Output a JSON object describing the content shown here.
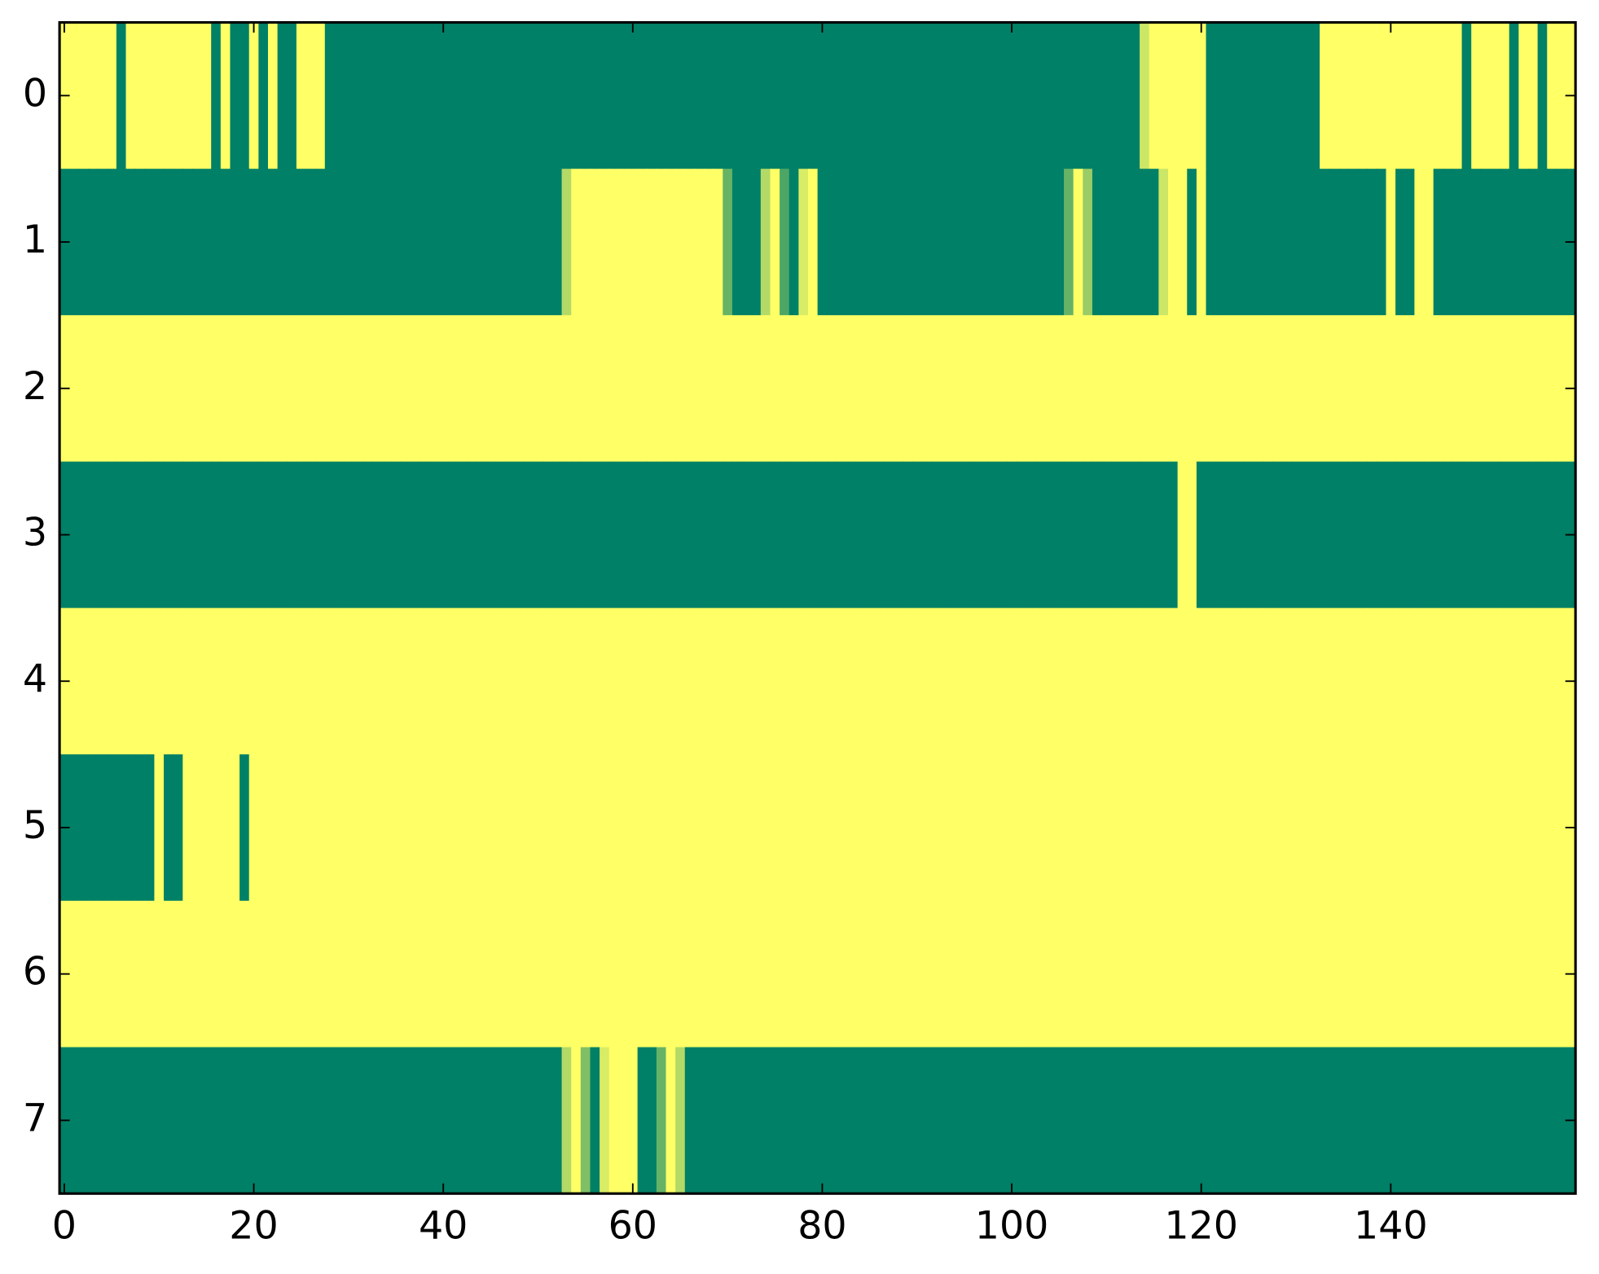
{
  "chart_data": {
    "type": "heatmap",
    "colormap": "summer",
    "xlim": [
      -0.5,
      159.5
    ],
    "ylim": [
      7.5,
      -0.5
    ],
    "xticks": [
      0,
      20,
      40,
      60,
      80,
      100,
      120,
      140
    ],
    "yticks": [
      0,
      1,
      2,
      3,
      4,
      5,
      6,
      7
    ],
    "z": [
      [
        1,
        1,
        1,
        1,
        1,
        1,
        0,
        1,
        1,
        1,
        1,
        1,
        1,
        1,
        1,
        1,
        0,
        1,
        0,
        0,
        1,
        0,
        1,
        0,
        0,
        1,
        1,
        1,
        0,
        0,
        0,
        0,
        0,
        0,
        0,
        0,
        0,
        0,
        0,
        0,
        0,
        0,
        0,
        0,
        0,
        0,
        0,
        0,
        0,
        0,
        0,
        0,
        0,
        0,
        0,
        0,
        0,
        0,
        0,
        0,
        0,
        0,
        0,
        0,
        0,
        0,
        0,
        0,
        0,
        0,
        0,
        0,
        0,
        0,
        0,
        0,
        0,
        0,
        0,
        0,
        0,
        0,
        0,
        0,
        0,
        0,
        0,
        0,
        0,
        0,
        0,
        0,
        0,
        0,
        0,
        0,
        0,
        0,
        0,
        0,
        0,
        0,
        0,
        0,
        0,
        0,
        0,
        0,
        0,
        0,
        0,
        0,
        0,
        0,
        0.8,
        1,
        1,
        1,
        1,
        1,
        1,
        0,
        0,
        0,
        0,
        0,
        0,
        0,
        0,
        0,
        0,
        0,
        0,
        1,
        1,
        1,
        1,
        1,
        1,
        1,
        1,
        1,
        1,
        1,
        1,
        1,
        1,
        1,
        0,
        1,
        1,
        1,
        1,
        0,
        1,
        1,
        0,
        1,
        1,
        1
      ],
      [
        0,
        0,
        0,
        0,
        0,
        0,
        0,
        0,
        0,
        0,
        0,
        0,
        0,
        0,
        0,
        0,
        0,
        0,
        0,
        0,
        0,
        0,
        0,
        0,
        0,
        0,
        0,
        0,
        0,
        0,
        0,
        0,
        0,
        0,
        0,
        0,
        0,
        0,
        0,
        0,
        0,
        0,
        0,
        0,
        0,
        0,
        0,
        0,
        0,
        0,
        0,
        0,
        0,
        0.7,
        1,
        1,
        1,
        1,
        1,
        1,
        1,
        1,
        1,
        1,
        1,
        1,
        1,
        1,
        1,
        1,
        0.4,
        0,
        0,
        0,
        0.7,
        1,
        0.3,
        0,
        0.85,
        1,
        0,
        0,
        0,
        0,
        0,
        0,
        0,
        0,
        0,
        0,
        0,
        0,
        0,
        0,
        0,
        0,
        0,
        0,
        0,
        0,
        0,
        0,
        0,
        0,
        0,
        0,
        0.4,
        1,
        0.6,
        0,
        0,
        0,
        0,
        0,
        0,
        0,
        0.8,
        1,
        1,
        0,
        1,
        0,
        0,
        0,
        0,
        0,
        0,
        0,
        0,
        0,
        0,
        0,
        0,
        0,
        0,
        0,
        0,
        0,
        0,
        0,
        1,
        0,
        0,
        1,
        1,
        0,
        0,
        0,
        0,
        0,
        0,
        0,
        0,
        0,
        0,
        0,
        0,
        0,
        0,
        0
      ],
      [
        1,
        1,
        1,
        1,
        1,
        1,
        1,
        1,
        1,
        1,
        1,
        1,
        1,
        1,
        1,
        1,
        1,
        1,
        1,
        1,
        1,
        1,
        1,
        1,
        1,
        1,
        1,
        1,
        1,
        1,
        1,
        1,
        1,
        1,
        1,
        1,
        1,
        1,
        1,
        1,
        1,
        1,
        1,
        1,
        1,
        1,
        1,
        1,
        1,
        1,
        1,
        1,
        1,
        1,
        1,
        1,
        1,
        1,
        1,
        1,
        1,
        1,
        1,
        1,
        1,
        1,
        1,
        1,
        1,
        1,
        1,
        1,
        1,
        1,
        1,
        1,
        1,
        1,
        1,
        1,
        1,
        1,
        1,
        1,
        1,
        1,
        1,
        1,
        1,
        1,
        1,
        1,
        1,
        1,
        1,
        1,
        1,
        1,
        1,
        1,
        1,
        1,
        1,
        1,
        1,
        1,
        1,
        1,
        1,
        1,
        1,
        1,
        1,
        1,
        1,
        1,
        1,
        1,
        1,
        1,
        1,
        1,
        1,
        1,
        1,
        1,
        1,
        1,
        1,
        1,
        1,
        1,
        1,
        1,
        1,
        1,
        1,
        1,
        1,
        1,
        1,
        1,
        1,
        1,
        1,
        1,
        1,
        1,
        1,
        1,
        1,
        1,
        1,
        1,
        1,
        1,
        1,
        1,
        1,
        1
      ],
      [
        0,
        0,
        0,
        0,
        0,
        0,
        0,
        0,
        0,
        0,
        0,
        0,
        0,
        0,
        0,
        0,
        0,
        0,
        0,
        0,
        0,
        0,
        0,
        0,
        0,
        0,
        0,
        0,
        0,
        0,
        0,
        0,
        0,
        0,
        0,
        0,
        0,
        0,
        0,
        0,
        0,
        0,
        0,
        0,
        0,
        0,
        0,
        0,
        0,
        0,
        0,
        0,
        0,
        0,
        0,
        0,
        0,
        0,
        0,
        0,
        0,
        0,
        0,
        0,
        0,
        0,
        0,
        0,
        0,
        0,
        0,
        0,
        0,
        0,
        0,
        0,
        0,
        0,
        0,
        0,
        0,
        0,
        0,
        0,
        0,
        0,
        0,
        0,
        0,
        0,
        0,
        0,
        0,
        0,
        0,
        0,
        0,
        0,
        0,
        0,
        0,
        0,
        0,
        0,
        0,
        0,
        0,
        0,
        0,
        0,
        0,
        0,
        0,
        0,
        0,
        0,
        0,
        0,
        1,
        1,
        0,
        0,
        0,
        0,
        0,
        0,
        0,
        0,
        0,
        0,
        0,
        0,
        0,
        0,
        0,
        0,
        0,
        0,
        0,
        0,
        0,
        0,
        0,
        0,
        0,
        0,
        0,
        0,
        0,
        0,
        0,
        0,
        0,
        0,
        0,
        0,
        0,
        0,
        0,
        0
      ],
      [
        1,
        1,
        1,
        1,
        1,
        1,
        1,
        1,
        1,
        1,
        1,
        1,
        1,
        1,
        1,
        1,
        1,
        1,
        1,
        1,
        1,
        1,
        1,
        1,
        1,
        1,
        1,
        1,
        1,
        1,
        1,
        1,
        1,
        1,
        1,
        1,
        1,
        1,
        1,
        1,
        1,
        1,
        1,
        1,
        1,
        1,
        1,
        1,
        1,
        1,
        1,
        1,
        1,
        1,
        1,
        1,
        1,
        1,
        1,
        1,
        1,
        1,
        1,
        1,
        1,
        1,
        1,
        1,
        1,
        1,
        1,
        1,
        1,
        1,
        1,
        1,
        1,
        1,
        1,
        1,
        1,
        1,
        1,
        1,
        1,
        1,
        1,
        1,
        1,
        1,
        1,
        1,
        1,
        1,
        1,
        1,
        1,
        1,
        1,
        1,
        1,
        1,
        1,
        1,
        1,
        1,
        1,
        1,
        1,
        1,
        1,
        1,
        1,
        1,
        1,
        1,
        1,
        1,
        1,
        1,
        1,
        1,
        1,
        1,
        1,
        1,
        1,
        1,
        1,
        1,
        1,
        1,
        1,
        1,
        1,
        1,
        1,
        1,
        1,
        1,
        1,
        1,
        1,
        1,
        1,
        1,
        1,
        1,
        1,
        1,
        1,
        1,
        1,
        1,
        1,
        1,
        1,
        1,
        1,
        1
      ],
      [
        0,
        0,
        0,
        0,
        0,
        0,
        0,
        0,
        0,
        0,
        1,
        0,
        0,
        1,
        1,
        1,
        1,
        1,
        1,
        0,
        1,
        1,
        1,
        1,
        1,
        1,
        1,
        1,
        1,
        1,
        1,
        1,
        1,
        1,
        1,
        1,
        1,
        1,
        1,
        1,
        1,
        1,
        1,
        1,
        1,
        1,
        1,
        1,
        1,
        1,
        1,
        1,
        1,
        1,
        1,
        1,
        1,
        1,
        1,
        1,
        1,
        1,
        1,
        1,
        1,
        1,
        1,
        1,
        1,
        1,
        1,
        1,
        1,
        1,
        1,
        1,
        1,
        1,
        1,
        1,
        1,
        1,
        1,
        1,
        1,
        1,
        1,
        1,
        1,
        1,
        1,
        1,
        1,
        1,
        1,
        1,
        1,
        1,
        1,
        1,
        1,
        1,
        1,
        1,
        1,
        1,
        1,
        1,
        1,
        1,
        1,
        1,
        1,
        1,
        1,
        1,
        1,
        1,
        1,
        1,
        1,
        1,
        1,
        1,
        1,
        1,
        1,
        1,
        1,
        1,
        1,
        1,
        1,
        1,
        1,
        1,
        1,
        1,
        1,
        1,
        1,
        1,
        1,
        1,
        1,
        1,
        1,
        1,
        1,
        1,
        1,
        1,
        1,
        1,
        1,
        1,
        1,
        1,
        1,
        1
      ],
      [
        1,
        1,
        1,
        1,
        1,
        1,
        1,
        1,
        1,
        1,
        1,
        1,
        1,
        1,
        1,
        1,
        1,
        1,
        1,
        1,
        1,
        1,
        1,
        1,
        1,
        1,
        1,
        1,
        1,
        1,
        1,
        1,
        1,
        1,
        1,
        1,
        1,
        1,
        1,
        1,
        1,
        1,
        1,
        1,
        1,
        1,
        1,
        1,
        1,
        1,
        1,
        1,
        1,
        1,
        1,
        1,
        1,
        1,
        1,
        1,
        1,
        1,
        1,
        1,
        1,
        1,
        1,
        1,
        1,
        1,
        1,
        1,
        1,
        1,
        1,
        1,
        1,
        1,
        1,
        1,
        1,
        1,
        1,
        1,
        1,
        1,
        1,
        1,
        1,
        1,
        1,
        1,
        1,
        1,
        1,
        1,
        1,
        1,
        1,
        1,
        1,
        1,
        1,
        1,
        1,
        1,
        1,
        1,
        1,
        1,
        1,
        1,
        1,
        1,
        1,
        1,
        1,
        1,
        1,
        1,
        1,
        1,
        1,
        1,
        1,
        1,
        1,
        1,
        1,
        1,
        1,
        1,
        1,
        1,
        1,
        1,
        1,
        1,
        1,
        1,
        1,
        1,
        1,
        1,
        1,
        1,
        1,
        1,
        1,
        1,
        1,
        1,
        1,
        1,
        1,
        1,
        1,
        1,
        1,
        1
      ],
      [
        0,
        0,
        0,
        0,
        0,
        0,
        0,
        0,
        0,
        0,
        0,
        0,
        0,
        0,
        0,
        0,
        0,
        0,
        0,
        0,
        0,
        0,
        0,
        0,
        0,
        0,
        0,
        0,
        0,
        0,
        0,
        0,
        0,
        0,
        0,
        0,
        0,
        0,
        0,
        0,
        0,
        0,
        0,
        0,
        0,
        0,
        0,
        0,
        0,
        0,
        0,
        0,
        0,
        0.7,
        1,
        0.5,
        0,
        0.85,
        1,
        1,
        1,
        0,
        0,
        0.4,
        1,
        0.7,
        0,
        0,
        0,
        0,
        0,
        0,
        0,
        0,
        0,
        0,
        0,
        0,
        0,
        0,
        0,
        0,
        0,
        0,
        0,
        0,
        0,
        0,
        0,
        0,
        0,
        0,
        0,
        0,
        0,
        0,
        0,
        0,
        0,
        0,
        0,
        0,
        0,
        0,
        0,
        0,
        0,
        0,
        0,
        0,
        0,
        0,
        0,
        0,
        0,
        0,
        0,
        0,
        0,
        0,
        0,
        0,
        0,
        0,
        0,
        0,
        0,
        0,
        0,
        0,
        0,
        0,
        0,
        0,
        0,
        0,
        0,
        0,
        0,
        0,
        0,
        0,
        0,
        0,
        0,
        0,
        0,
        0,
        0,
        0,
        0,
        0,
        0,
        0,
        0,
        0,
        0,
        0,
        0,
        0
      ]
    ]
  }
}
